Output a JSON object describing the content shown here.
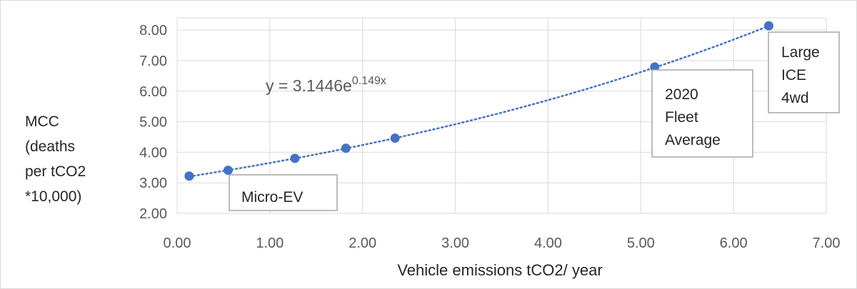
{
  "chart_data": {
    "type": "scatter",
    "title": "",
    "xlabel": "Vehicle emissions tCO2/ year",
    "ylabel_lines": [
      "MCC",
      "(deaths",
      "per tCO2",
      "*10,000)"
    ],
    "xlim": [
      0,
      7
    ],
    "ylim": [
      2,
      8.4
    ],
    "x_ticks": [
      "0.00",
      "1.00",
      "2.00",
      "3.00",
      "4.00",
      "5.00",
      "6.00",
      "7.00"
    ],
    "y_ticks": [
      "2.00",
      "3.00",
      "4.00",
      "5.00",
      "6.00",
      "7.00",
      "8.00"
    ],
    "grid": true,
    "series": [
      {
        "x": [
          0.13,
          0.55,
          1.27,
          1.82,
          2.35,
          5.15,
          6.38
        ],
        "y": [
          3.22,
          3.41,
          3.8,
          4.13,
          4.46,
          6.79,
          8.14
        ],
        "color": "#4472c4"
      }
    ],
    "trendline": {
      "type": "exponential",
      "a": 3.1446,
      "b": 0.149,
      "color": "#4472c4",
      "style": "dotted",
      "equation_prefix": "y = 3.1446e",
      "equation_exponent": "0.149x"
    },
    "annotations": [
      {
        "lines": [
          "Micro-EV"
        ]
      },
      {
        "lines": [
          "2020",
          "Fleet",
          "Average"
        ]
      },
      {
        "lines": [
          "Large",
          "ICE",
          "4wd"
        ]
      }
    ]
  }
}
